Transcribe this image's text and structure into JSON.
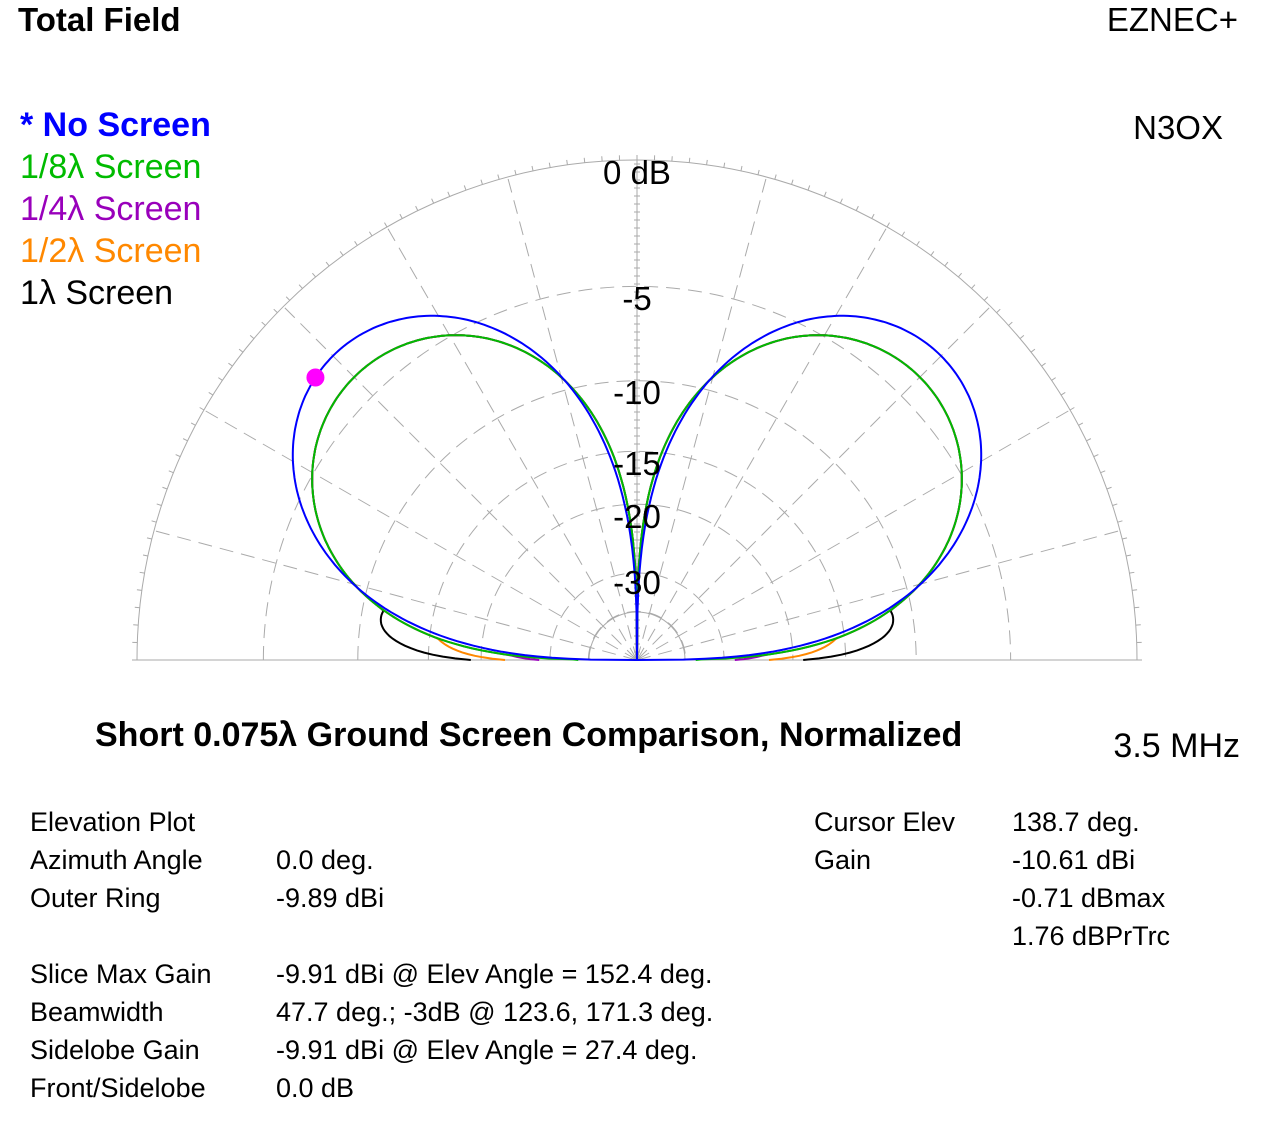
{
  "header": {
    "title": "Total Field",
    "brand": "EZNEC+",
    "author": "N3OX"
  },
  "legend": [
    {
      "label": "* No Screen",
      "color": "#0000ff",
      "active": true
    },
    {
      "label": "1/8λ Screen",
      "color": "#00bb00",
      "active": false
    },
    {
      "label": "1/4λ Screen",
      "color": "#9900bb",
      "active": false
    },
    {
      "label": "1/2λ Screen",
      "color": "#ff8800",
      "active": false
    },
    {
      "label": "1λ Screen",
      "color": "#000000",
      "active": false
    }
  ],
  "chart_data": {
    "type": "polar-elevation",
    "title": "Short 0.075λ Ground Screen Comparison, Normalized",
    "frequency": "3.5 MHz",
    "ring_labels": [
      "0 dB",
      "-5",
      "-10",
      "-15",
      "-20",
      "-30"
    ],
    "cursor": {
      "elevation_deg": 138.7,
      "gain_dbmax": -0.71,
      "color": "#ff00ff"
    },
    "angle_grid_deg": [
      0,
      15,
      30,
      45,
      60,
      75,
      90,
      105,
      120,
      135,
      150,
      165,
      180
    ],
    "series": [
      {
        "name": "No Screen",
        "color": "#0000ff",
        "max_gain_dbi": -9.91,
        "relative_db": 0.0,
        "floor": 0.0
      },
      {
        "name": "1/8λ Screen",
        "color": "#00bb00",
        "relative_db": -1.76,
        "floor": 0.12
      },
      {
        "name": "1/4λ Screen",
        "color": "#9900bb",
        "relative_db": -1.76,
        "floor": 0.2
      },
      {
        "name": "1/2λ Screen",
        "color": "#ff8800",
        "relative_db": -1.76,
        "floor": 0.27
      },
      {
        "name": "1λ Screen",
        "color": "#000000",
        "relative_db": -1.76,
        "floor": 0.34
      }
    ]
  },
  "info": {
    "labels_left": [
      "Elevation Plot",
      "Azimuth Angle",
      "Outer Ring",
      "",
      "Slice Max Gain",
      "Beamwidth",
      "Sidelobe Gain",
      "Front/Sidelobe"
    ],
    "values_left": [
      "",
      "0.0 deg.",
      "-9.89 dBi",
      "",
      "-9.91 dBi @ Elev Angle = 152.4 deg.",
      "47.7 deg.; -3dB @ 123.6, 171.3 deg.",
      "-9.91 dBi @ Elev Angle = 27.4 deg.",
      "0.0 dB"
    ],
    "labels_right": [
      "Cursor Elev",
      "Gain",
      "",
      ""
    ],
    "values_right": [
      "138.7 deg.",
      "-10.61 dBi",
      "-0.71 dBmax",
      "1.76 dBPrTrc"
    ]
  }
}
